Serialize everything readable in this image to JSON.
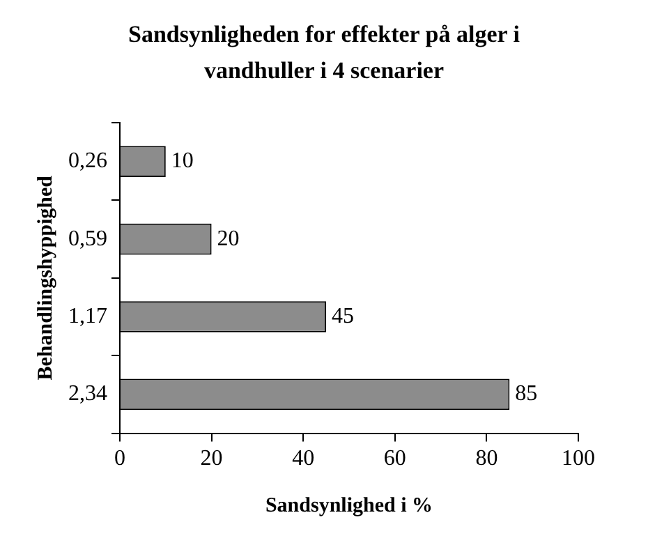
{
  "chart_data": {
    "type": "bar",
    "orientation": "horizontal",
    "title": "Sandsynligheden for effekter på alger i vandhuller i 4 scenarier",
    "xlabel": "Sandsynlighed i %",
    "ylabel": "Behandlingshyppighed",
    "categories": [
      "0,26",
      "0,59",
      "1,17",
      "2,34"
    ],
    "values": [
      10,
      20,
      45,
      85
    ],
    "color": "#8c8c8c",
    "xlim": [
      0,
      100
    ],
    "xticks": [
      0,
      20,
      40,
      60,
      80,
      100
    ],
    "grid": false,
    "legend": false,
    "data_labels": true
  }
}
